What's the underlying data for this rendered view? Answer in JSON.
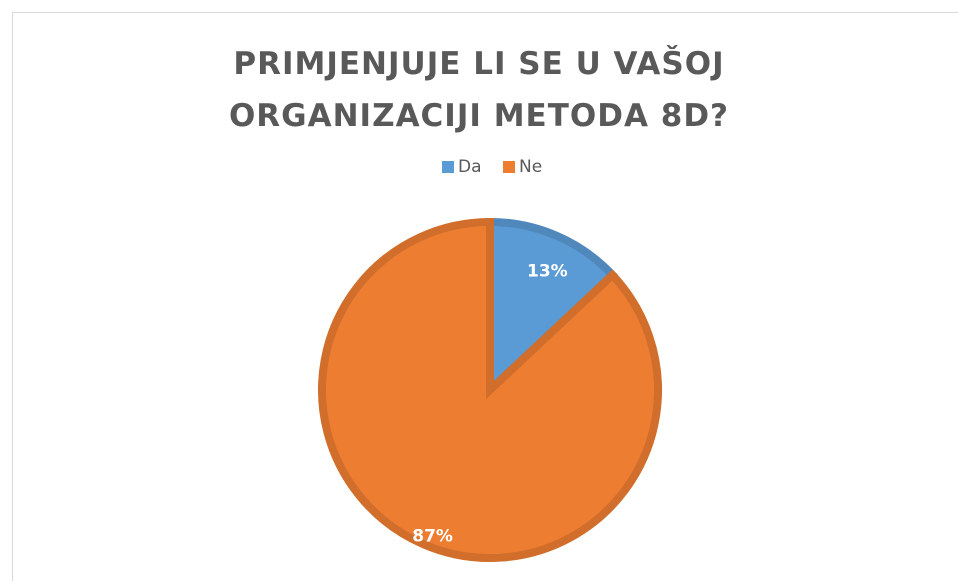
{
  "chart_data": {
    "type": "pie",
    "title": "PRIMJENJUJE LI SE U VAŠOJ ORGANIZACIJI METODA 8D?",
    "categories": [
      "Da",
      "Ne"
    ],
    "values": [
      13,
      87
    ],
    "value_labels": [
      "13%",
      "87%"
    ],
    "colors": [
      "#5b9bd5",
      "#ed7d31"
    ],
    "legend": "top"
  }
}
